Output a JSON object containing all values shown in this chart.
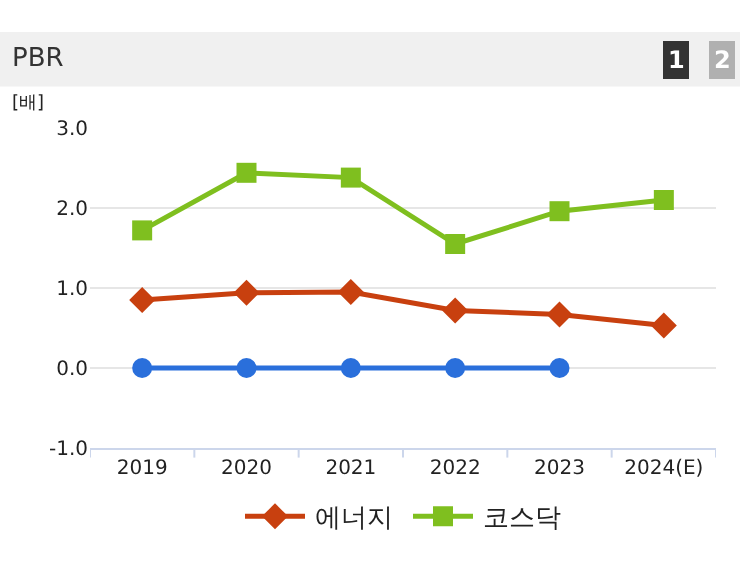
{
  "chart_data": {
    "type": "line",
    "title": "PBR",
    "ylabel": "[배]",
    "annotations": [
      "1",
      "2"
    ],
    "categories": [
      "2019",
      "2020",
      "2021",
      "2022",
      "2023",
      "2024(E)"
    ],
    "series": [
      {
        "color": "#2a6fdb",
        "marker": "circle",
        "values": [
          0,
          0,
          0,
          0,
          0,
          null
        ]
      },
      {
        "name": "에너지",
        "color": "#c8400f",
        "marker": "diamond",
        "values": [
          0.85,
          0.94,
          0.95,
          0.72,
          0.67,
          0.53
        ]
      },
      {
        "name": "코스닥",
        "color": "#7fbf1f",
        "marker": "square",
        "values": [
          1.72,
          2.44,
          2.38,
          1.55,
          1.96,
          2.1
        ]
      }
    ],
    "ylim": [
      -1,
      3
    ],
    "yticks": [
      {
        "value": -1,
        "label": "-1.0"
      },
      {
        "value": 0,
        "label": "0.0"
      },
      {
        "value": 1,
        "label": "1.0"
      },
      {
        "value": 2,
        "label": "2.0"
      },
      {
        "value": 3,
        "label": "3.0"
      }
    ],
    "grid": "y",
    "legend": "bottom",
    "line_style": "solid"
  }
}
